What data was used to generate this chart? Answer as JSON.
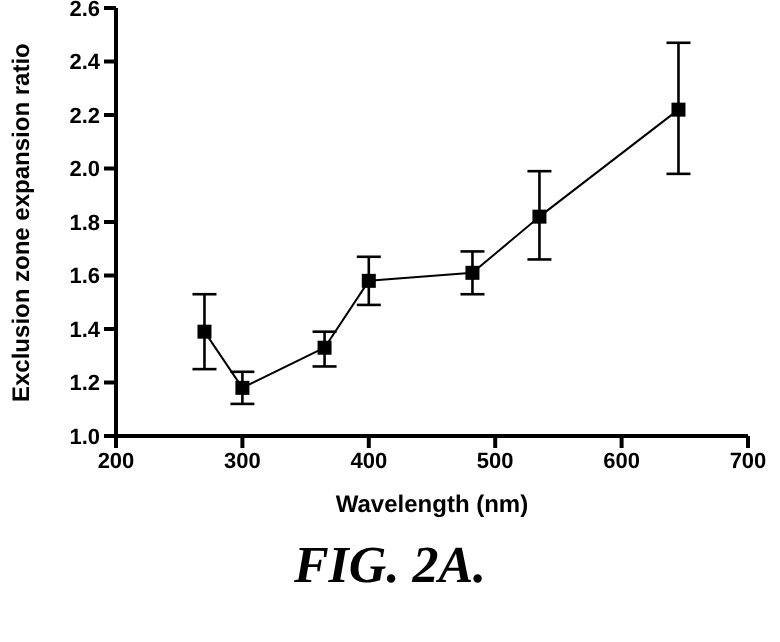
{
  "chart_data": {
    "type": "line",
    "xlabel": "Wavelength (nm)",
    "ylabel": "Exclusion zone expansion ratio",
    "annotations": [
      "FIG. 2A."
    ],
    "x": [
      270,
      300,
      365,
      400,
      482,
      535,
      645
    ],
    "values": [
      1.39,
      1.18,
      1.33,
      1.58,
      1.61,
      1.82,
      2.22
    ],
    "errors": [
      [
        1.25,
        1.53
      ],
      [
        1.12,
        1.24
      ],
      [
        1.26,
        1.39
      ],
      [
        1.49,
        1.67
      ],
      [
        1.53,
        1.69
      ],
      [
        1.66,
        1.99
      ],
      [
        1.98,
        2.47
      ]
    ],
    "color": "#000000",
    "marker": "square",
    "line_style": "solid",
    "grid": false,
    "xlim": [
      200,
      700
    ],
    "xticks": [
      200,
      300,
      400,
      500,
      600,
      700
    ],
    "ylim": [
      1.0,
      2.6
    ],
    "yticks": [
      {
        "value": 1.0,
        "label": "1.0"
      },
      {
        "value": 1.2,
        "label": "1.2"
      },
      {
        "value": 1.4,
        "label": "1.4"
      },
      {
        "value": 1.6,
        "label": "1.6"
      },
      {
        "value": 1.8,
        "label": "1.8"
      },
      {
        "value": 2.0,
        "label": "2.0"
      },
      {
        "value": 2.2,
        "label": "2.2"
      },
      {
        "value": 2.4,
        "label": "2.4"
      },
      {
        "value": 2.6,
        "label": "2.6"
      }
    ]
  }
}
